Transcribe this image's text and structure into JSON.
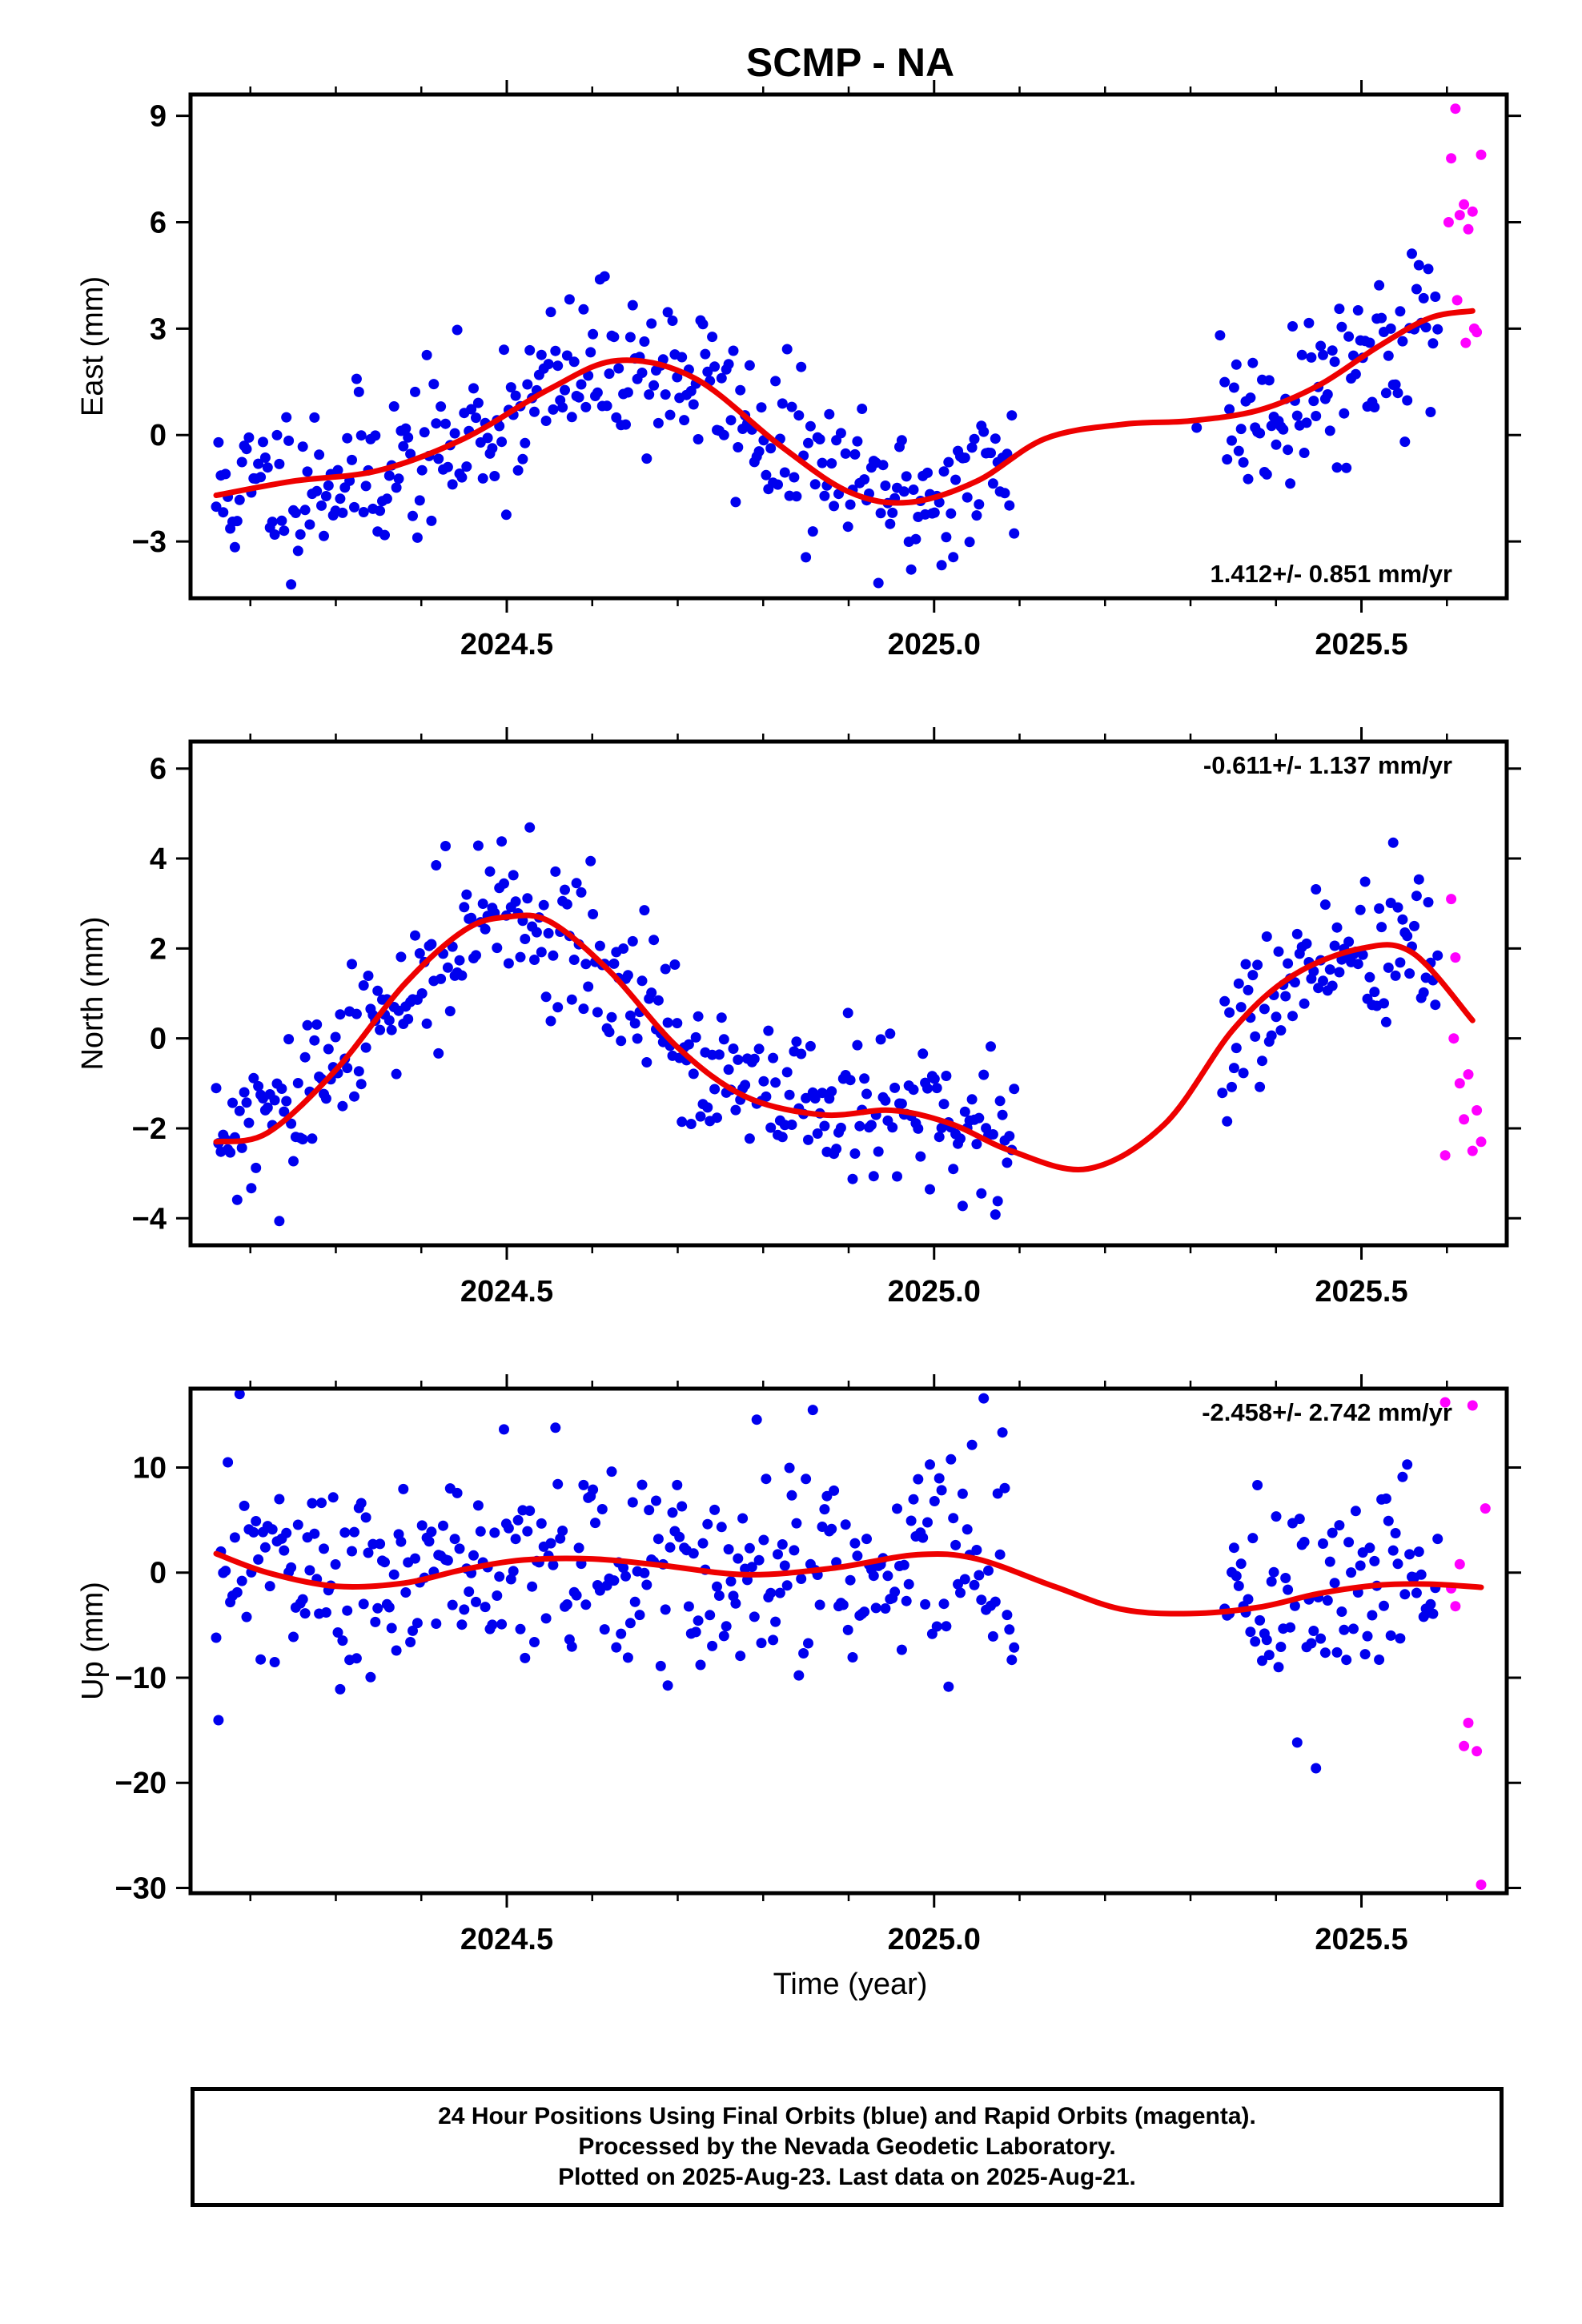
{
  "title": "SCMP - NA",
  "xlabel": "Time (year)",
  "colors": {
    "final": "#0000ee",
    "rapid": "#ff00ff",
    "model": "#ee0000",
    "axis": "#000000"
  },
  "footer": {
    "line1": "24 Hour Positions Using Final Orbits (blue) and Rapid Orbits (magenta).",
    "line2": "Processed by the Nevada Geodetic Laboratory.",
    "line3": "Plotted on 2025-Aug-23. Last data on 2025-Aug-21."
  },
  "chart_data": [
    {
      "type": "scatter",
      "name": "East",
      "ylabel": "East (mm)",
      "xlim": [
        2024.13,
        2025.67
      ],
      "ylim": [
        -4.6,
        9.6
      ],
      "x_ticks": [
        2024.5,
        2025.0,
        2025.5
      ],
      "x_tick_labels": [
        "2024.5",
        "2025.0",
        "2025.5"
      ],
      "y_ticks": [
        -3,
        0,
        3,
        6,
        9
      ],
      "y_tick_labels": [
        "−3",
        "0",
        "3",
        "6",
        "9"
      ],
      "rate_label": "1.412+/- 0.851 mm/yr",
      "rate_position": "bottom-right",
      "model_curve": {
        "x": [
          2024.16,
          2024.25,
          2024.35,
          2024.45,
          2024.55,
          2024.63,
          2024.72,
          2024.82,
          2024.9,
          2024.97,
          2025.05,
          2025.13,
          2025.22,
          2025.3,
          2025.38,
          2025.45,
          2025.52,
          2025.58,
          2025.63
        ],
        "y": [
          -1.7,
          -1.3,
          -1.0,
          -0.1,
          1.3,
          2.1,
          1.6,
          -0.3,
          -1.6,
          -1.9,
          -1.3,
          -0.1,
          0.3,
          0.4,
          0.7,
          1.4,
          2.5,
          3.3,
          3.5
        ]
      },
      "rapid": {
        "x": [
          2025.605,
          2025.61,
          2025.615,
          2025.62,
          2025.625,
          2025.63,
          2025.635,
          2025.64,
          2025.602,
          2025.612,
          2025.622,
          2025.632
        ],
        "y": [
          7.8,
          9.2,
          6.2,
          6.5,
          5.8,
          6.3,
          2.9,
          7.9,
          6.0,
          3.8,
          2.6,
          3.0
        ]
      }
    },
    {
      "type": "scatter",
      "name": "North",
      "ylabel": "North (mm)",
      "xlim": [
        2024.13,
        2025.67
      ],
      "ylim": [
        -4.6,
        6.6
      ],
      "x_ticks": [
        2024.5,
        2025.0,
        2025.5
      ],
      "x_tick_labels": [
        "2024.5",
        "2025.0",
        "2025.5"
      ],
      "y_ticks": [
        -4,
        -2,
        0,
        2,
        4,
        6
      ],
      "y_tick_labels": [
        "−4",
        "−2",
        "0",
        "2",
        "4",
        "6"
      ],
      "rate_label": "-0.611+/- 1.137 mm/yr",
      "rate_position": "top-right",
      "model_curve": {
        "x": [
          2024.16,
          2024.22,
          2024.3,
          2024.38,
          2024.45,
          2024.5,
          2024.55,
          2024.62,
          2024.7,
          2024.78,
          2024.87,
          2024.95,
          2025.02,
          2025.09,
          2025.18,
          2025.27,
          2025.35,
          2025.42,
          2025.5,
          2025.56,
          2025.63
        ],
        "y": [
          -2.3,
          -2.1,
          -0.7,
          1.2,
          2.4,
          2.7,
          2.6,
          1.5,
          -0.2,
          -1.3,
          -1.7,
          -1.6,
          -1.9,
          -2.5,
          -2.9,
          -1.9,
          0.2,
          1.4,
          2.0,
          1.9,
          0.4
        ]
      },
      "rapid": {
        "x": [
          2025.598,
          2025.605,
          2025.61,
          2025.615,
          2025.62,
          2025.625,
          2025.63,
          2025.635,
          2025.64,
          2025.608
        ],
        "y": [
          -2.6,
          3.1,
          1.8,
          -1.0,
          -1.8,
          -0.8,
          -2.5,
          -1.6,
          -2.3,
          0.0
        ]
      }
    },
    {
      "type": "scatter",
      "name": "Up",
      "ylabel": "Up (mm)",
      "xlim": [
        2024.13,
        2025.67
      ],
      "ylim": [
        -30.5,
        17.5
      ],
      "x_ticks": [
        2024.5,
        2025.0,
        2025.5
      ],
      "x_tick_labels": [
        "2024.5",
        "2025.0",
        "2025.5"
      ],
      "y_ticks": [
        -30,
        -20,
        -10,
        0,
        10
      ],
      "y_tick_labels": [
        "−30",
        "−20",
        "−10",
        "0",
        "10"
      ],
      "rate_label": "-2.458+/- 2.742 mm/yr",
      "rate_position": "top-right",
      "model_curve": {
        "x": [
          2024.16,
          2024.22,
          2024.3,
          2024.38,
          2024.45,
          2024.52,
          2024.6,
          2024.68,
          2024.78,
          2024.88,
          2024.98,
          2025.05,
          2025.14,
          2025.22,
          2025.3,
          2025.38,
          2025.45,
          2025.52,
          2025.58,
          2025.64
        ],
        "y": [
          1.8,
          0.0,
          -1.3,
          -1.0,
          0.3,
          1.2,
          1.3,
          0.7,
          -0.2,
          0.4,
          1.7,
          1.3,
          -1.3,
          -3.5,
          -3.9,
          -3.3,
          -2.0,
          -1.2,
          -1.1,
          -1.4
        ]
      },
      "rapid": {
        "x": [
          2025.598,
          2025.605,
          2025.61,
          2025.615,
          2025.62,
          2025.625,
          2025.63,
          2025.635,
          2025.64,
          2025.645
        ],
        "y": [
          16.2,
          -1.5,
          -3.2,
          0.8,
          -16.5,
          -14.3,
          15.9,
          -17.0,
          -29.7,
          6.1
        ]
      }
    }
  ]
}
